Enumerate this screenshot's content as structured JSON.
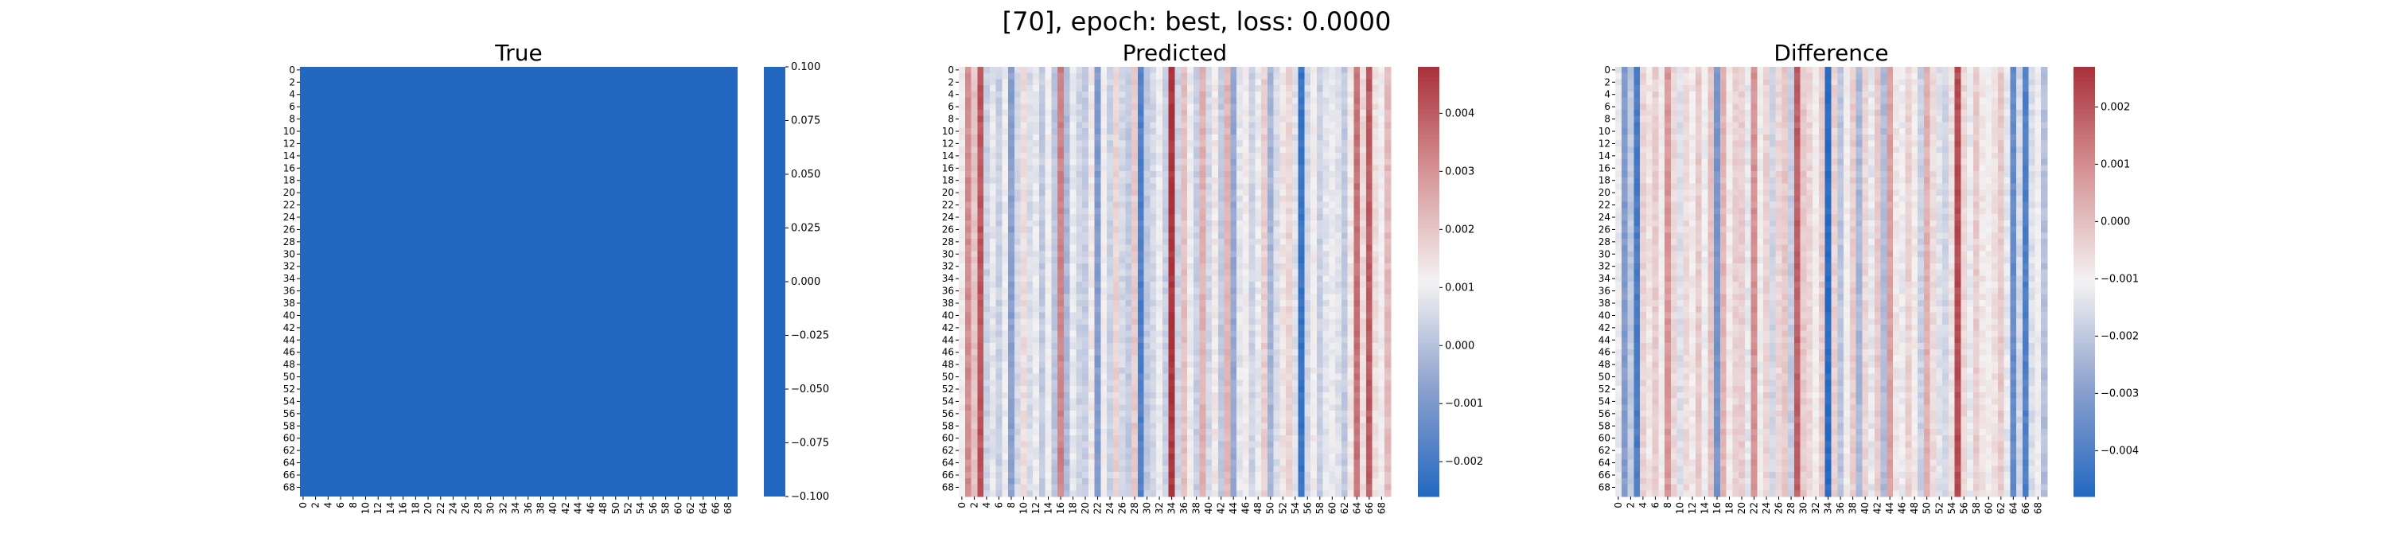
{
  "figure": {
    "suptitle": "[70], epoch: best, loss: 0.0000"
  },
  "chart_data": [
    {
      "type": "heatmap",
      "title": "True",
      "rows": 70,
      "cols": 70,
      "x_tick_labels": [
        "0",
        "2",
        "4",
        "6",
        "8",
        "10",
        "12",
        "14",
        "16",
        "18",
        "20",
        "22",
        "24",
        "26",
        "28",
        "30",
        "32",
        "34",
        "36",
        "38",
        "40",
        "42",
        "44",
        "46",
        "48",
        "50",
        "52",
        "54",
        "56",
        "58",
        "60",
        "62",
        "64",
        "66",
        "68"
      ],
      "y_tick_labels": [
        "0",
        "2",
        "4",
        "6",
        "8",
        "10",
        "12",
        "14",
        "16",
        "18",
        "20",
        "22",
        "24",
        "26",
        "28",
        "30",
        "32",
        "34",
        "36",
        "38",
        "40",
        "42",
        "44",
        "46",
        "48",
        "50",
        "52",
        "54",
        "56",
        "58",
        "60",
        "62",
        "64",
        "66",
        "68"
      ],
      "constant_value": 0.0,
      "colorbar": {
        "range": [
          -0.1,
          0.1
        ],
        "ticks": [
          -0.1,
          -0.075,
          -0.05,
          -0.025,
          0.0,
          0.025,
          0.05,
          0.075,
          0.1
        ],
        "tick_labels": [
          "−0.100",
          "−0.075",
          "−0.050",
          "−0.025",
          "0.000",
          "0.025",
          "0.050",
          "0.075",
          "0.100"
        ]
      },
      "colormap": "coolwarm",
      "fill_color": "#2368c0"
    },
    {
      "type": "heatmap",
      "title": "Predicted",
      "rows": 70,
      "cols": 70,
      "x_tick_labels": [
        "0",
        "2",
        "4",
        "6",
        "8",
        "10",
        "12",
        "14",
        "16",
        "18",
        "20",
        "22",
        "24",
        "26",
        "28",
        "30",
        "32",
        "34",
        "36",
        "38",
        "40",
        "42",
        "44",
        "46",
        "48",
        "50",
        "52",
        "54",
        "56",
        "58",
        "60",
        "62",
        "64",
        "66",
        "68"
      ],
      "y_tick_labels": [
        "0",
        "2",
        "4",
        "6",
        "8",
        "10",
        "12",
        "14",
        "16",
        "18",
        "20",
        "22",
        "24",
        "26",
        "28",
        "30",
        "32",
        "34",
        "36",
        "38",
        "40",
        "42",
        "44",
        "46",
        "48",
        "50",
        "52",
        "54",
        "56",
        "58",
        "60",
        "62",
        "64",
        "66",
        "68"
      ],
      "column_values": [
        0.0012,
        0.0031,
        0.002,
        0.0041,
        0.0004,
        0.0008,
        0.0003,
        0.001,
        -0.0008,
        0.0005,
        0.0015,
        0.0006,
        0.0009,
        0.0002,
        0.0011,
        0.0001,
        0.0033,
        -0.0002,
        0.0009,
        0.0004,
        0.0003,
        0.0013,
        -0.0009,
        0.0011,
        0.0004,
        0.0017,
        0.0005,
        0.0002,
        0.0019,
        -0.0018,
        0.0002,
        0.0005,
        0.001,
        0.0003,
        0.0047,
        0.0004,
        0.0021,
        0.001,
        0.0003,
        0.0024,
        0.0005,
        0.0013,
        0.0002,
        0.0023,
        -0.0006,
        0.0008,
        0.0012,
        0.0004,
        0.0009,
        0.0018,
        -0.0003,
        0.0006,
        0.0014,
        0.0017,
        0.0007,
        -0.0022,
        0.0005,
        0.0012,
        0.0003,
        0.0008,
        0.001,
        0.0007,
        0.0002,
        0.0013,
        0.0036,
        0.0016,
        0.004,
        0.0015,
        0.0011,
        0.0022
      ],
      "colorbar": {
        "range": [
          -0.0026,
          0.0048
        ],
        "ticks": [
          -0.002,
          -0.001,
          0.0,
          0.001,
          0.002,
          0.003,
          0.004
        ],
        "tick_labels": [
          "−0.002",
          "−0.001",
          "0.000",
          "0.001",
          "0.002",
          "0.003",
          "0.004"
        ]
      },
      "colormap": "coolwarm"
    },
    {
      "type": "heatmap",
      "title": "Difference",
      "rows": 70,
      "cols": 70,
      "x_tick_labels": [
        "0",
        "2",
        "4",
        "6",
        "8",
        "10",
        "12",
        "14",
        "16",
        "18",
        "20",
        "22",
        "24",
        "26",
        "28",
        "30",
        "32",
        "34",
        "36",
        "38",
        "40",
        "42",
        "44",
        "46",
        "48",
        "50",
        "52",
        "54",
        "56",
        "58",
        "60",
        "62",
        "64",
        "66",
        "68"
      ],
      "y_tick_labels": [
        "0",
        "2",
        "4",
        "6",
        "8",
        "10",
        "12",
        "14",
        "16",
        "18",
        "20",
        "22",
        "24",
        "26",
        "28",
        "30",
        "32",
        "34",
        "36",
        "38",
        "40",
        "42",
        "44",
        "46",
        "48",
        "50",
        "52",
        "54",
        "56",
        "58",
        "60",
        "62",
        "64",
        "66",
        "68"
      ],
      "column_values": [
        -0.0012,
        -0.0031,
        -0.002,
        -0.0041,
        -0.0004,
        -0.0008,
        -0.0003,
        -0.001,
        0.0008,
        -0.0005,
        -0.0015,
        -0.0006,
        -0.0009,
        -0.0002,
        -0.0011,
        -0.0001,
        -0.0033,
        0.0002,
        -0.0009,
        -0.0004,
        -0.0003,
        -0.0013,
        0.0009,
        -0.0011,
        -0.0004,
        -0.0017,
        -0.0005,
        -0.0002,
        -0.0019,
        0.0018,
        -0.0002,
        -0.0005,
        -0.001,
        -0.0003,
        -0.0047,
        -0.0004,
        -0.0021,
        -0.001,
        -0.0003,
        -0.0024,
        -0.0005,
        -0.0013,
        -0.0002,
        -0.0023,
        0.0006,
        -0.0008,
        -0.0012,
        -0.0004,
        -0.0009,
        -0.0018,
        0.0003,
        -0.0006,
        -0.0014,
        -0.0017,
        -0.0007,
        0.0022,
        -0.0005,
        -0.0012,
        -0.0003,
        -0.0008,
        -0.001,
        -0.0007,
        -0.0002,
        -0.0013,
        -0.0036,
        -0.0016,
        -0.004,
        -0.0015,
        -0.0011,
        -0.0022
      ],
      "colorbar": {
        "range": [
          -0.0048,
          0.0027
        ],
        "ticks": [
          -0.004,
          -0.003,
          -0.002,
          -0.001,
          0.0,
          0.001,
          0.002
        ],
        "tick_labels": [
          "−0.004",
          "−0.003",
          "−0.002",
          "−0.001",
          "0.000",
          "0.001",
          "0.002"
        ]
      },
      "colormap": "coolwarm"
    }
  ]
}
